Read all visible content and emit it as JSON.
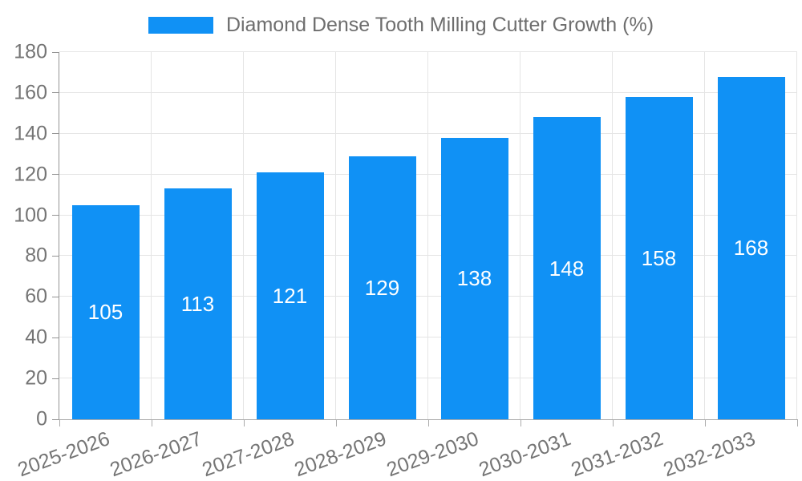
{
  "legend": {
    "label": "Diamond Dense Tooth Milling Cutter Growth (%)"
  },
  "chart_data": {
    "type": "bar",
    "title": "Diamond Dense Tooth Milling Cutter Growth (%)",
    "categories": [
      "2025-2026",
      "2026-2027",
      "2027-2028",
      "2028-2029",
      "2029-2030",
      "2030-2031",
      "2031-2032",
      "2032-2033"
    ],
    "values": [
      105,
      113,
      121,
      129,
      138,
      148,
      158,
      168
    ],
    "xlabel": "",
    "ylabel": "",
    "ylim": [
      0,
      180
    ],
    "ytick_step": 20,
    "yticks": [
      0,
      20,
      40,
      60,
      80,
      100,
      120,
      140,
      160,
      180
    ],
    "grid": true,
    "legend_position": "top-center",
    "x_label_rotation_deg": -20,
    "value_labels": "inside-center"
  },
  "colors": {
    "bar": "#1091f5",
    "value_label": "#ffffff",
    "grid": "#e5e5e5",
    "y_axis": "#949494",
    "x_axis": "#ababab",
    "tick_text": "#757575",
    "legend_text": "#6e6e6e",
    "background": "#ffffff"
  }
}
